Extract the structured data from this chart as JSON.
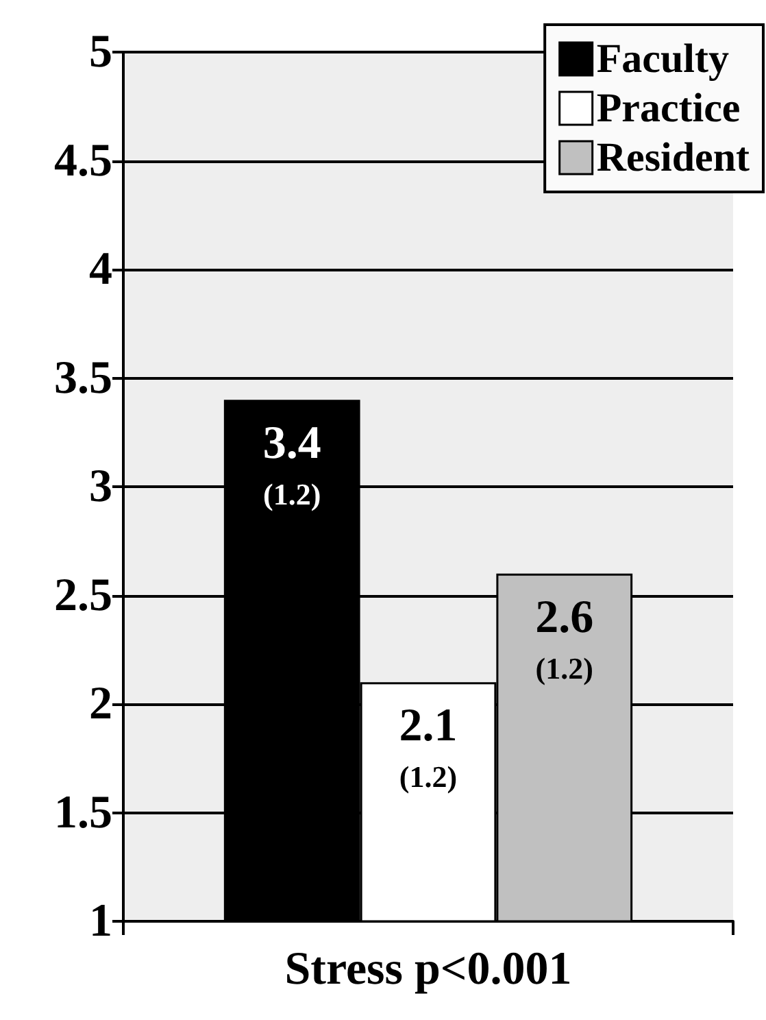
{
  "chart_data": {
    "type": "bar",
    "categories": [
      "Stress p<0.001"
    ],
    "series": [
      {
        "name": "Faculty",
        "color": "#000000",
        "values": [
          3.4
        ],
        "value_labels": [
          "3.4\n(1.2)"
        ]
      },
      {
        "name": "Practice",
        "color": "#ffffff",
        "values": [
          2.1
        ],
        "value_labels": [
          "2.1\n(1.2)"
        ]
      },
      {
        "name": "Resident",
        "color": "#c0c0c0",
        "values": [
          2.6
        ],
        "value_labels": [
          "2.6\n(1.2)"
        ]
      }
    ],
    "ylim": [
      1,
      5
    ],
    "yticks": [
      1,
      1.5,
      2,
      2.5,
      3,
      3.5,
      4,
      4.5,
      5
    ],
    "grid": "y",
    "legend": "top right"
  }
}
